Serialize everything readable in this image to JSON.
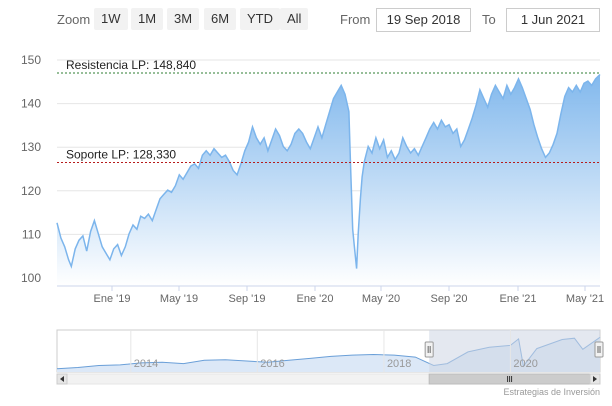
{
  "range_selector": {
    "zoom_label": "Zoom",
    "buttons": [
      "1W",
      "1M",
      "3M",
      "6M",
      "YTD",
      "All"
    ],
    "from_label": "From",
    "from_value": "19 Sep 2018",
    "to_label": "To",
    "to_value": "1 Jun 2021"
  },
  "credits": "Estrategias de Inversión",
  "colors": {
    "line": "#7cb5ec",
    "area_top": "#7cb5ec",
    "area_bottom": "#ffffff",
    "resistance": "#2e7d32",
    "support": "#b71c1c",
    "nav_mask": "#cdd6e4"
  },
  "chart_data": {
    "type": "area",
    "x_ticks": [
      "Ene '19",
      "May '19",
      "Sep '19",
      "Ene '20",
      "May '20",
      "Sep '20",
      "Ene '21",
      "May '21"
    ],
    "y_ticks": [
      100,
      110,
      120,
      130,
      140,
      150
    ],
    "ylim": [
      100,
      150
    ],
    "xlim": [
      "2018-09-19",
      "2021-06-01"
    ],
    "grid": true,
    "legend": "none",
    "annotations": [
      {
        "label": "Resistencia LP: 148,840",
        "value": 148.84,
        "style": "dashed",
        "color": "resistance"
      },
      {
        "label": "Soporte LP: 128,330",
        "value": 128.33,
        "style": "dashed",
        "color": "support"
      }
    ],
    "series": [
      {
        "values": [
          [
            "2018-09-19",
            114.5
          ],
          [
            "2018-09-26",
            111.0
          ],
          [
            "2018-10-03",
            109.0
          ],
          [
            "2018-10-10",
            106.0
          ],
          [
            "2018-10-15",
            104.5
          ],
          [
            "2018-10-22",
            108.5
          ],
          [
            "2018-10-29",
            110.5
          ],
          [
            "2018-11-05",
            111.5
          ],
          [
            "2018-11-12",
            108.0
          ],
          [
            "2018-11-19",
            112.5
          ],
          [
            "2018-11-26",
            115.0
          ],
          [
            "2018-12-03",
            112.0
          ],
          [
            "2018-12-10",
            109.0
          ],
          [
            "2018-12-17",
            107.5
          ],
          [
            "2018-12-24",
            106.0
          ],
          [
            "2018-12-31",
            108.5
          ],
          [
            "2019-01-07",
            109.5
          ],
          [
            "2019-01-14",
            107.0
          ],
          [
            "2019-01-21",
            109.0
          ],
          [
            "2019-01-28",
            112.0
          ],
          [
            "2019-02-04",
            114.0
          ],
          [
            "2019-02-11",
            113.0
          ],
          [
            "2019-02-18",
            116.0
          ],
          [
            "2019-02-25",
            115.5
          ],
          [
            "2019-03-04",
            116.5
          ],
          [
            "2019-03-11",
            115.0
          ],
          [
            "2019-03-18",
            117.5
          ],
          [
            "2019-03-25",
            120.0
          ],
          [
            "2019-04-01",
            121.0
          ],
          [
            "2019-04-08",
            122.0
          ],
          [
            "2019-04-15",
            121.5
          ],
          [
            "2019-04-22",
            123.0
          ],
          [
            "2019-04-29",
            125.5
          ],
          [
            "2019-05-06",
            124.5
          ],
          [
            "2019-05-13",
            126.0
          ],
          [
            "2019-05-20",
            127.5
          ],
          [
            "2019-05-27",
            128.0
          ],
          [
            "2019-06-03",
            127.0
          ],
          [
            "2019-06-10",
            130.0
          ],
          [
            "2019-06-17",
            131.0
          ],
          [
            "2019-06-24",
            130.0
          ],
          [
            "2019-07-01",
            131.5
          ],
          [
            "2019-07-08",
            130.5
          ],
          [
            "2019-07-15",
            129.5
          ],
          [
            "2019-07-22",
            130.0
          ],
          [
            "2019-07-29",
            128.5
          ],
          [
            "2019-08-05",
            126.5
          ],
          [
            "2019-08-12",
            125.5
          ],
          [
            "2019-08-19",
            128.0
          ],
          [
            "2019-08-26",
            131.0
          ],
          [
            "2019-09-02",
            133.0
          ],
          [
            "2019-09-09",
            136.5
          ],
          [
            "2019-09-16",
            134.0
          ],
          [
            "2019-09-23",
            132.5
          ],
          [
            "2019-09-30",
            134.0
          ],
          [
            "2019-10-07",
            131.0
          ],
          [
            "2019-10-14",
            133.5
          ],
          [
            "2019-10-21",
            136.0
          ],
          [
            "2019-10-28",
            134.5
          ],
          [
            "2019-11-04",
            132.0
          ],
          [
            "2019-11-11",
            131.0
          ],
          [
            "2019-11-18",
            132.5
          ],
          [
            "2019-11-25",
            135.0
          ],
          [
            "2019-12-02",
            136.0
          ],
          [
            "2019-12-09",
            135.0
          ],
          [
            "2019-12-16",
            133.0
          ],
          [
            "2019-12-23",
            131.5
          ],
          [
            "2019-12-30",
            134.0
          ],
          [
            "2020-01-06",
            136.5
          ],
          [
            "2020-01-13",
            134.0
          ],
          [
            "2020-01-20",
            137.0
          ],
          [
            "2020-01-27",
            140.0
          ],
          [
            "2020-02-03",
            143.0
          ],
          [
            "2020-02-10",
            144.5
          ],
          [
            "2020-02-17",
            146.0
          ],
          [
            "2020-02-24",
            144.0
          ],
          [
            "2020-03-02",
            140.0
          ],
          [
            "2020-03-05",
            128.0
          ],
          [
            "2020-03-09",
            113.0
          ],
          [
            "2020-03-12",
            109.0
          ],
          [
            "2020-03-16",
            104.0
          ],
          [
            "2020-03-19",
            112.0
          ],
          [
            "2020-03-23",
            120.0
          ],
          [
            "2020-03-26",
            125.0
          ],
          [
            "2020-03-30",
            128.5
          ],
          [
            "2020-04-06",
            132.0
          ],
          [
            "2020-04-13",
            130.5
          ],
          [
            "2020-04-20",
            134.0
          ],
          [
            "2020-04-27",
            131.5
          ],
          [
            "2020-05-04",
            133.5
          ],
          [
            "2020-05-11",
            129.5
          ],
          [
            "2020-05-18",
            131.0
          ],
          [
            "2020-05-25",
            129.0
          ],
          [
            "2020-06-01",
            130.5
          ],
          [
            "2020-06-08",
            134.0
          ],
          [
            "2020-06-15",
            132.0
          ],
          [
            "2020-06-22",
            130.5
          ],
          [
            "2020-06-29",
            131.5
          ],
          [
            "2020-07-06",
            130.0
          ],
          [
            "2020-07-13",
            132.0
          ],
          [
            "2020-07-20",
            134.0
          ],
          [
            "2020-07-27",
            136.0
          ],
          [
            "2020-08-03",
            137.5
          ],
          [
            "2020-08-10",
            136.0
          ],
          [
            "2020-08-17",
            138.0
          ],
          [
            "2020-08-24",
            136.5
          ],
          [
            "2020-08-31",
            137.0
          ],
          [
            "2020-09-07",
            135.0
          ],
          [
            "2020-09-14",
            136.0
          ],
          [
            "2020-09-21",
            132.0
          ],
          [
            "2020-09-28",
            133.5
          ],
          [
            "2020-10-05",
            136.0
          ],
          [
            "2020-10-12",
            138.5
          ],
          [
            "2020-10-19",
            141.5
          ],
          [
            "2020-10-26",
            145.0
          ],
          [
            "2020-11-02",
            143.0
          ],
          [
            "2020-11-09",
            141.0
          ],
          [
            "2020-11-16",
            144.0
          ],
          [
            "2020-11-23",
            146.0
          ],
          [
            "2020-11-30",
            144.5
          ],
          [
            "2020-12-07",
            143.0
          ],
          [
            "2020-12-14",
            146.0
          ],
          [
            "2020-12-21",
            144.0
          ],
          [
            "2020-12-28",
            145.5
          ],
          [
            "2021-01-04",
            147.5
          ],
          [
            "2021-01-11",
            145.5
          ],
          [
            "2021-01-18",
            143.0
          ],
          [
            "2021-01-25",
            140.5
          ],
          [
            "2021-02-01",
            137.0
          ],
          [
            "2021-02-08",
            134.0
          ],
          [
            "2021-02-15",
            131.5
          ],
          [
            "2021-02-22",
            129.5
          ],
          [
            "2021-03-01",
            130.5
          ],
          [
            "2021-03-08",
            132.5
          ],
          [
            "2021-03-15",
            135.0
          ],
          [
            "2021-03-22",
            139.5
          ],
          [
            "2021-03-29",
            143.5
          ],
          [
            "2021-04-05",
            145.5
          ],
          [
            "2021-04-12",
            144.5
          ],
          [
            "2021-04-19",
            146.0
          ],
          [
            "2021-04-26",
            144.5
          ],
          [
            "2021-05-03",
            146.5
          ],
          [
            "2021-05-10",
            147.0
          ],
          [
            "2021-05-17",
            146.0
          ],
          [
            "2021-05-24",
            147.5
          ],
          [
            "2021-06-01",
            148.5
          ]
        ]
      }
    ],
    "navigator": {
      "x_ticks": [
        "2014",
        "2016",
        "2018",
        "2020"
      ],
      "xlim": [
        "2012-11-01",
        "2021-06-01"
      ],
      "selected": [
        "2018-09-19",
        "2021-06-01"
      ],
      "values": [
        [
          "2012-11-01",
          100
        ],
        [
          "2013-03-01",
          102
        ],
        [
          "2013-07-01",
          105
        ],
        [
          "2013-11-01",
          106
        ],
        [
          "2014-03-01",
          109
        ],
        [
          "2014-07-01",
          110
        ],
        [
          "2014-11-01",
          108
        ],
        [
          "2015-03-01",
          113
        ],
        [
          "2015-07-01",
          114
        ],
        [
          "2015-11-01",
          112
        ],
        [
          "2016-03-01",
          110
        ],
        [
          "2016-07-01",
          113
        ],
        [
          "2016-11-01",
          116
        ],
        [
          "2017-03-01",
          119
        ],
        [
          "2017-07-01",
          121
        ],
        [
          "2017-11-01",
          122
        ],
        [
          "2018-03-01",
          121
        ],
        [
          "2018-07-01",
          118
        ],
        [
          "2018-10-15",
          105
        ],
        [
          "2019-01-01",
          108
        ],
        [
          "2019-05-01",
          126
        ],
        [
          "2019-09-01",
          133
        ],
        [
          "2020-01-01",
          136
        ],
        [
          "2020-02-17",
          146
        ],
        [
          "2020-03-16",
          104
        ],
        [
          "2020-06-01",
          131
        ],
        [
          "2020-10-26",
          145
        ],
        [
          "2021-01-04",
          147
        ],
        [
          "2021-02-22",
          130
        ],
        [
          "2021-06-01",
          148.5
        ]
      ]
    }
  }
}
